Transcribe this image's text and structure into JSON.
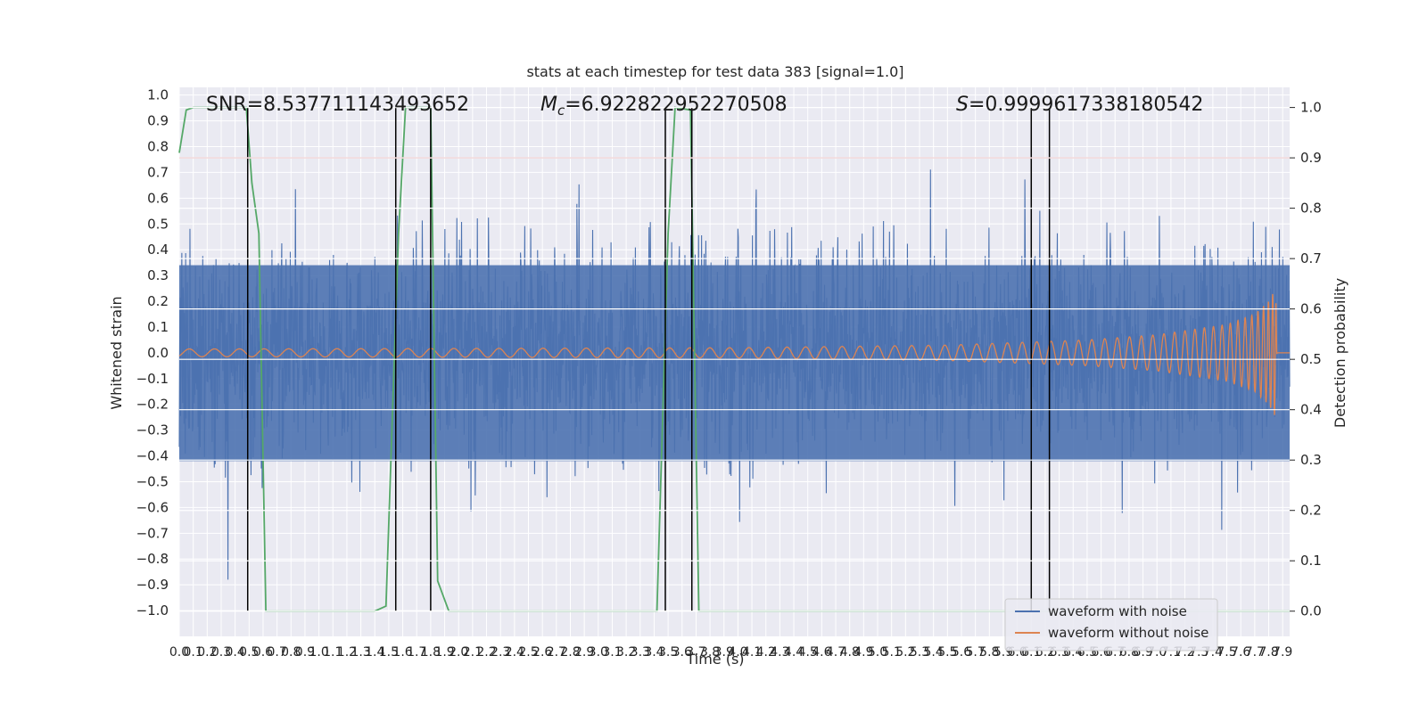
{
  "chart_data": {
    "type": "line",
    "title": "stats at each timestep for test data 383 [signal=1.0]",
    "xlabel": "Time (s)",
    "ylabel": "Whitened strain",
    "y2label": "Detection probability",
    "xlim": [
      0.0,
      7.95
    ],
    "ylim": [
      -1.1,
      1.03
    ],
    "y2lim": [
      -0.05,
      1.04
    ],
    "x_ticks": [
      0.0,
      0.1,
      0.2,
      0.3,
      0.4,
      0.5,
      0.6,
      0.7,
      0.8,
      0.9,
      1.0,
      1.1,
      1.2,
      1.3,
      1.4,
      1.5,
      1.6,
      1.7,
      1.8,
      1.9,
      2.0,
      2.1,
      2.2,
      2.3,
      2.4,
      2.5,
      2.6,
      2.7,
      2.8,
      2.9,
      3.0,
      3.1,
      3.2,
      3.3,
      3.4,
      3.5,
      3.6,
      3.7,
      3.8,
      3.9,
      4.0,
      4.1,
      4.2,
      4.3,
      4.4,
      4.5,
      4.6,
      4.7,
      4.8,
      4.9,
      5.0,
      5.1,
      5.2,
      5.3,
      5.4,
      5.5,
      5.6,
      5.7,
      5.8,
      5.9,
      6.0,
      6.1,
      6.2,
      6.3,
      6.4,
      6.5,
      6.6,
      6.7,
      6.8,
      6.9,
      7.0,
      7.1,
      7.2,
      7.3,
      7.4,
      7.5,
      7.6,
      7.7,
      7.8,
      7.9
    ],
    "y_ticks": [
      -1.0,
      -0.9,
      -0.8,
      -0.7,
      -0.6,
      -0.5,
      -0.4,
      -0.3,
      -0.2,
      -0.1,
      0.0,
      0.1,
      0.2,
      0.3,
      0.4,
      0.5,
      0.6,
      0.7,
      0.8,
      0.9,
      1.0
    ],
    "y2_ticks": [
      0.0,
      0.1,
      0.2,
      0.3,
      0.4,
      0.5,
      0.6,
      0.7,
      0.8,
      0.9,
      1.0
    ],
    "series": [
      {
        "name": "waveform with noise",
        "color": "#4c72b0",
        "description_values": "dense noisy strain, roughly within -0.85 to 0.95"
      },
      {
        "name": "waveform without noise",
        "color": "#dd8452",
        "envelope": [
          [
            0.0,
            0.015
          ],
          [
            2.0,
            0.017
          ],
          [
            4.0,
            0.02
          ],
          [
            5.5,
            0.03
          ],
          [
            6.5,
            0.05
          ],
          [
            7.0,
            0.07
          ],
          [
            7.5,
            0.11
          ],
          [
            7.7,
            0.15
          ],
          [
            7.8,
            0.2
          ],
          [
            7.85,
            0.25
          ],
          [
            7.86,
            0.0
          ],
          [
            7.95,
            0.0
          ]
        ]
      }
    ],
    "detection_probability": {
      "color": "#55a868",
      "points": [
        [
          0.0,
          0.91
        ],
        [
          0.05,
          0.995
        ],
        [
          0.1,
          1.0
        ],
        [
          0.48,
          1.0
        ],
        [
          0.52,
          0.85
        ],
        [
          0.57,
          0.75
        ],
        [
          0.62,
          0.0
        ],
        [
          1.4,
          0.0
        ],
        [
          1.48,
          0.01
        ],
        [
          1.57,
          0.75
        ],
        [
          1.62,
          1.0
        ],
        [
          1.8,
          1.0
        ],
        [
          1.85,
          0.06
        ],
        [
          1.93,
          0.0
        ],
        [
          3.42,
          0.0
        ],
        [
          3.5,
          0.75
        ],
        [
          3.55,
          1.0
        ],
        [
          3.66,
          0.995
        ],
        [
          3.72,
          0.0
        ],
        [
          7.95,
          0.0
        ]
      ]
    },
    "threshold": {
      "value": 0.9,
      "axis": "y2",
      "color": "#c44e52"
    },
    "vertical_markers": [
      0.49,
      1.55,
      1.8,
      3.48,
      3.67,
      6.1,
      6.23
    ],
    "vertical_color": "#000000",
    "annotations": {
      "snr_text": "SNR=8.537711143493652",
      "mc_prefix": "M",
      "mc_sub": "c",
      "mc_text": "=6.922822952270508",
      "s_prefix": "S",
      "s_text": "=0.9999617338180542"
    },
    "legend": {
      "placement": "bottom-right",
      "entries": [
        "waveform with noise",
        "waveform without noise"
      ]
    },
    "grid": true
  }
}
